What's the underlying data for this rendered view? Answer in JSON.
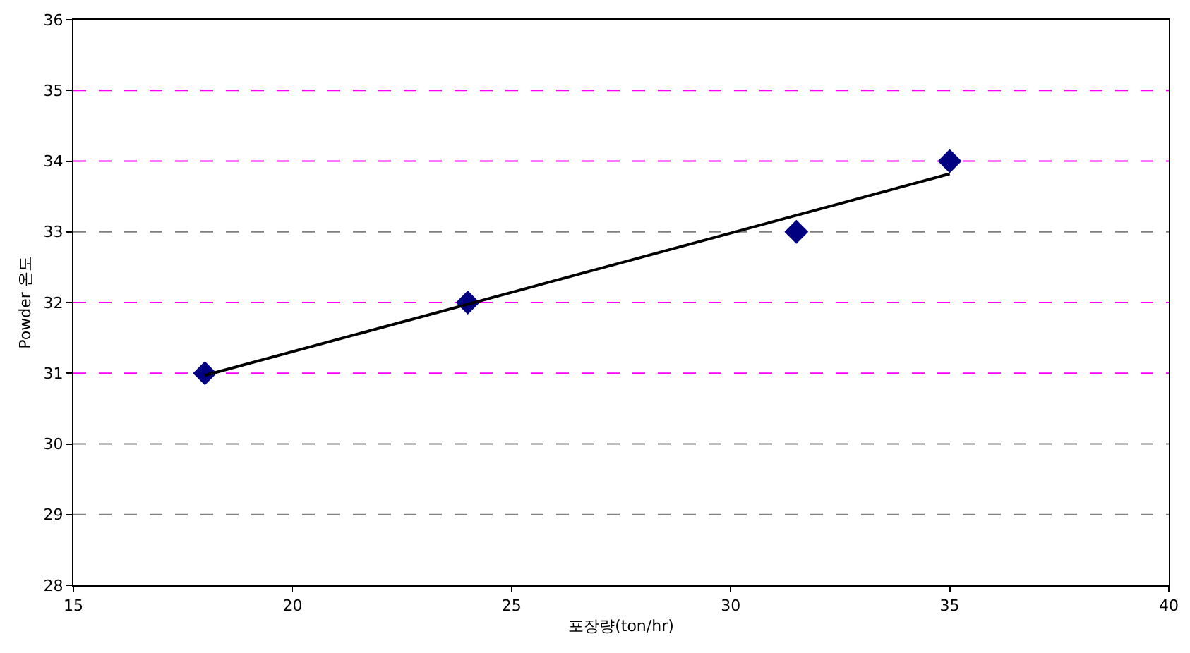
{
  "chart_data": {
    "type": "scatter",
    "xlabel": "포장량(ton/hr)",
    "ylabel": "Powder 온도",
    "xlim": [
      15,
      40
    ],
    "xticks": [
      15,
      20,
      25,
      30,
      35,
      40
    ],
    "ylim": [
      28,
      36
    ],
    "yticks": [
      28,
      29,
      30,
      31,
      32,
      33,
      34,
      35,
      36
    ],
    "grid": false,
    "marker": "diamond",
    "series": [
      {
        "color": "#000080",
        "x": [
          18,
          24,
          31.5,
          35
        ],
        "values": [
          31,
          32,
          33,
          34
        ]
      },
      {
        "type": "line",
        "color": "#000000",
        "marker": "none",
        "line_style": "solid",
        "x": [
          18,
          35
        ],
        "values": [
          30.97,
          33.82
        ]
      }
    ],
    "ref_lines": [
      {
        "axis": "y",
        "value": 29,
        "color": "#808080",
        "line_style": "dashed"
      },
      {
        "axis": "y",
        "value": 30,
        "color": "#808080",
        "line_style": "dashed"
      },
      {
        "axis": "y",
        "value": 31,
        "color": "#ff00ff",
        "line_style": "dashed"
      },
      {
        "axis": "y",
        "value": 32,
        "color": "#ff00ff",
        "line_style": "dashed"
      },
      {
        "axis": "y",
        "value": 33,
        "color": "#808080",
        "line_style": "dashed"
      },
      {
        "axis": "y",
        "value": 34,
        "color": "#ff00ff",
        "line_style": "dashed"
      },
      {
        "axis": "y",
        "value": 35,
        "color": "#ff00ff",
        "line_style": "dashed"
      }
    ]
  }
}
